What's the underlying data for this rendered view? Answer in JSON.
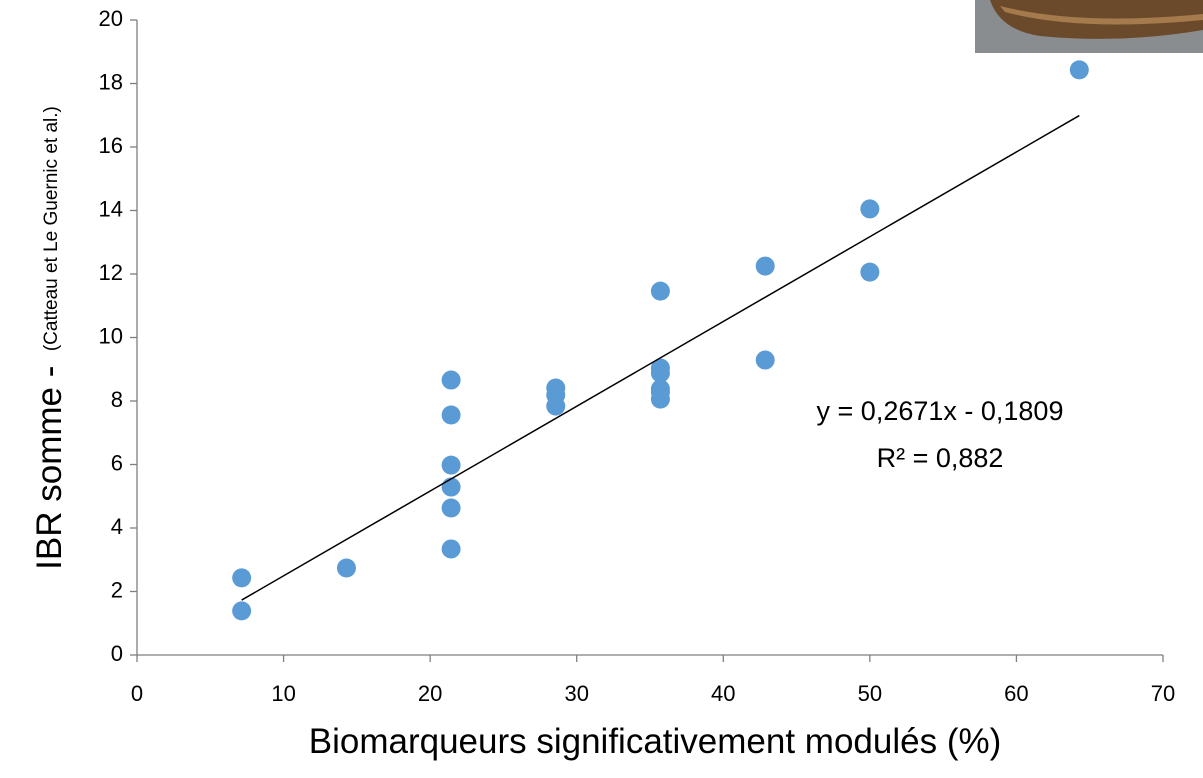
{
  "chart_data": {
    "type": "scatter",
    "x_label": "Biomarqueurs significativement modulés (%)",
    "y_label": "IBR somme -",
    "y_label_note": "(Catteau et Le Guernic et al.)",
    "annotations": [
      "y = 0,2671x - 0,1809",
      "R² = 0,882"
    ],
    "xlim": [
      0,
      70
    ],
    "xticks": [
      0,
      10,
      20,
      30,
      40,
      50,
      60,
      70
    ],
    "ylim": [
      0,
      20
    ],
    "yticks": [
      0,
      2,
      4,
      6,
      8,
      10,
      12,
      14,
      16,
      18,
      20
    ],
    "grid": false,
    "series": [
      {
        "color": "#5b9bd5",
        "x": [
          7.14,
          7.14,
          14.29,
          21.43,
          21.43,
          21.43,
          21.43,
          21.43,
          21.43,
          28.57,
          28.57,
          28.57,
          35.71,
          35.71,
          35.71,
          35.71,
          35.71,
          35.71,
          42.86,
          42.86,
          50,
          50,
          64.29
        ],
        "values": [
          2.43,
          1.39,
          2.74,
          8.66,
          7.56,
          5.98,
          5.29,
          4.63,
          3.34,
          8.41,
          8.19,
          7.84,
          11.46,
          9.04,
          8.88,
          8.38,
          8.28,
          8.06,
          12.25,
          9.29,
          14.05,
          12.06,
          18.43
        ]
      }
    ],
    "trendline": {
      "color": "#000000",
      "x": [
        7.14,
        64.29
      ],
      "values": [
        1.73,
        16.99
      ]
    }
  }
}
